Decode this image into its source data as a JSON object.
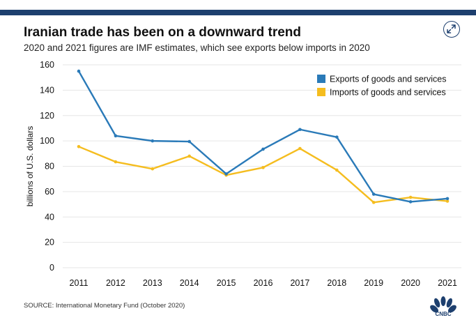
{
  "header": {
    "title": "Iranian trade has been on a downward trend",
    "subtitle": "2020 and 2021 figures are IMF estimates, which see exports below imports in 2020"
  },
  "footer": {
    "source": "SOURCE: International Monetary Fund (October 2020)",
    "logo_text": "CNBC"
  },
  "icons": {
    "expand": "expand-arrows-icon",
    "logo": "cnbc-peacock-logo"
  },
  "colors": {
    "exports": "#2a7ab8",
    "imports": "#f5bd1f",
    "top_bar": "#1d3f6e",
    "grid": "#e6e6e6"
  },
  "chart_data": {
    "type": "line",
    "title": "Iranian trade has been on a downward trend",
    "subtitle": "2020 and 2021 figures are IMF estimates, which see exports below imports in 2020",
    "xlabel": "",
    "ylabel": "billions of U.S. dollars",
    "ylim": [
      0,
      160
    ],
    "yticks": [
      0,
      20,
      40,
      60,
      80,
      100,
      120,
      140,
      160
    ],
    "categories": [
      "2011",
      "2012",
      "2013",
      "2014",
      "2015",
      "2016",
      "2017",
      "2018",
      "2019",
      "2020",
      "2021"
    ],
    "series": [
      {
        "name": "Exports of goods and services",
        "color": "#2a7ab8",
        "values": [
          155,
          104,
          100,
          99.5,
          74,
          93.5,
          109,
          103,
          58,
          52,
          54.5
        ]
      },
      {
        "name": "Imports of goods and services",
        "color": "#f5bd1f",
        "values": [
          95.5,
          83.5,
          78,
          88,
          73,
          79,
          94,
          77,
          51.5,
          55.5,
          52.5
        ]
      }
    ],
    "legend_position": "top-right",
    "grid": "horizontal"
  }
}
